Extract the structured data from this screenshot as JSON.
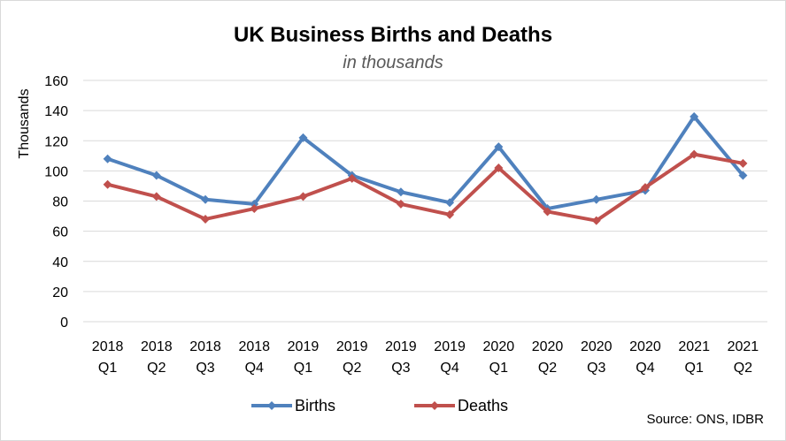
{
  "chart_data": {
    "type": "line",
    "title": "UK Business Births and Deaths",
    "subtitle": "in thousands",
    "ylabel": "Thousands",
    "xlabel": "",
    "ylim": [
      0,
      160
    ],
    "yticks": [
      0,
      20,
      40,
      60,
      80,
      100,
      120,
      140,
      160
    ],
    "grid": true,
    "legend_position": "bottom",
    "categories": [
      [
        "2018",
        "Q1"
      ],
      [
        "2018",
        "Q2"
      ],
      [
        "2018",
        "Q3"
      ],
      [
        "2018",
        "Q4"
      ],
      [
        "2019",
        "Q1"
      ],
      [
        "2019",
        "Q2"
      ],
      [
        "2019",
        "Q3"
      ],
      [
        "2019",
        "Q4"
      ],
      [
        "2020",
        "Q1"
      ],
      [
        "2020",
        "Q2"
      ],
      [
        "2020",
        "Q3"
      ],
      [
        "2020",
        "Q4"
      ],
      [
        "2021",
        "Q1"
      ],
      [
        "2021",
        "Q2"
      ]
    ],
    "series": [
      {
        "name": "Births",
        "color": "#4f81bd",
        "values": [
          108,
          97,
          81,
          78,
          122,
          97,
          86,
          79,
          116,
          75,
          81,
          87,
          136,
          97
        ]
      },
      {
        "name": "Deaths",
        "color": "#c0504d",
        "values": [
          91,
          83,
          68,
          75,
          83,
          95,
          78,
          71,
          102,
          73,
          67,
          89,
          111,
          105
        ]
      }
    ],
    "source": "Source: ONS, IDBR"
  }
}
